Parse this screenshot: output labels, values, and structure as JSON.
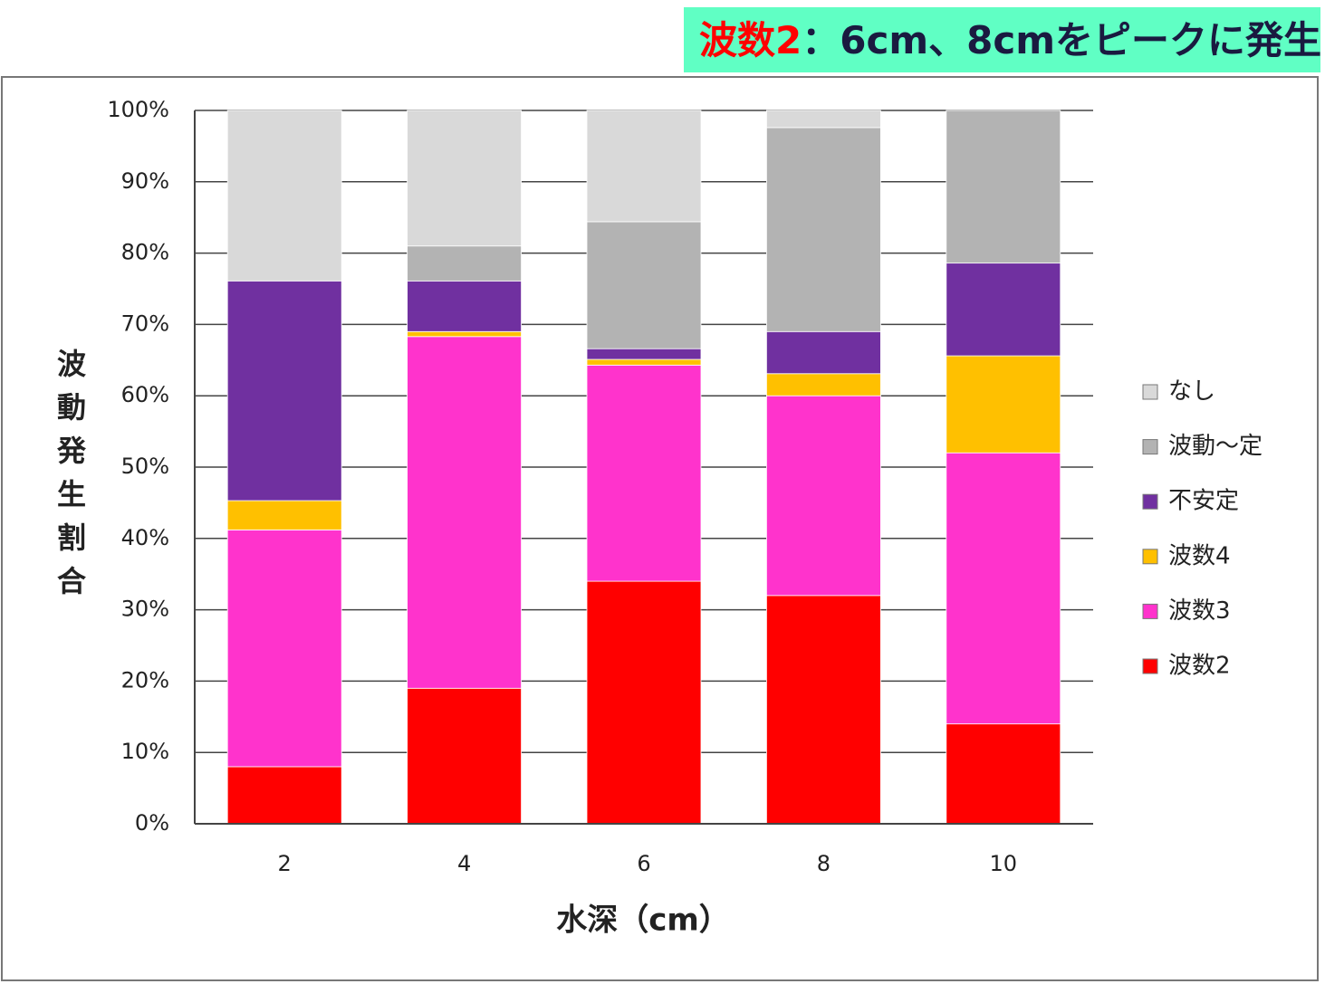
{
  "chart_data": {
    "type": "stacked_bar",
    "title_parts": [
      "波数2",
      "：6cm、8cmをピークに発生"
    ],
    "title_colors": [
      "#ff0000",
      "#1a1a40"
    ],
    "xlabel": "水深（cm）",
    "ylabel": "波動発生割合",
    "categories": [
      "2",
      "4",
      "6",
      "8",
      "10"
    ],
    "series": [
      {
        "name": "波数2",
        "color": "#ff0000",
        "values": [
          8,
          19,
          34,
          32,
          14
        ]
      },
      {
        "name": "波数3",
        "color": "#ff33cc",
        "values": [
          33.2,
          49.3,
          30.3,
          28,
          38
        ]
      },
      {
        "name": "波数4",
        "color": "#ffc000",
        "values": [
          4.1,
          0.7,
          0.8,
          3.1,
          13.6
        ]
      },
      {
        "name": "不安定",
        "color": "#7030a0",
        "values": [
          30.8,
          7.1,
          1.5,
          5.9,
          13
        ]
      },
      {
        "name": "波動～定",
        "color": "#b3b3b3",
        "values": [
          0,
          4.9,
          17.8,
          28.6,
          21.4
        ]
      },
      {
        "name": "なし",
        "color": "#d9d9d9",
        "values": [
          23.9,
          19,
          15.6,
          2.4,
          0
        ]
      }
    ],
    "ylim": [
      0,
      100
    ],
    "yticks": [
      {
        "value": 0,
        "label": "0%"
      },
      {
        "value": 10,
        "label": "10%"
      },
      {
        "value": 20,
        "label": "20%"
      },
      {
        "value": 30,
        "label": "30%"
      },
      {
        "value": 40,
        "label": "40%"
      },
      {
        "value": 50,
        "label": "50%"
      },
      {
        "value": 60,
        "label": "60%"
      },
      {
        "value": 70,
        "label": "70%"
      },
      {
        "value": 80,
        "label": "80%"
      },
      {
        "value": 90,
        "label": "90%"
      },
      {
        "value": 100,
        "label": "100%"
      }
    ],
    "grid": true,
    "legend": "right"
  }
}
